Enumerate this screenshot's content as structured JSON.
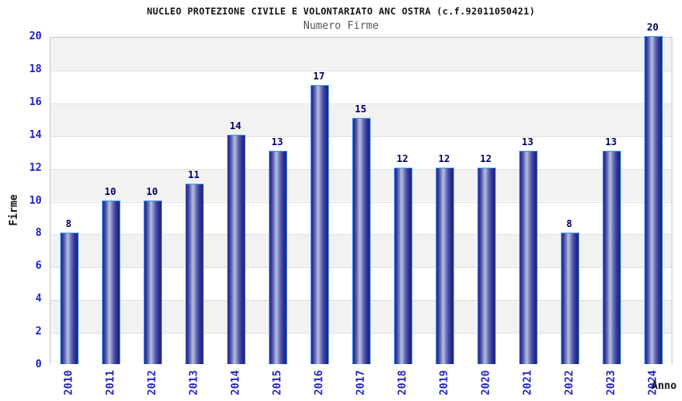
{
  "header": {
    "title": "NUCLEO PROTEZIONE CIVILE E VOLONTARIATO ANC OSTRA (c.f.92011050421)",
    "subtitle": "Numero Firme"
  },
  "chart_data": {
    "type": "bar",
    "title": "NUCLEO PROTEZIONE CIVILE E VOLONTARIATO ANC OSTRA (c.f.92011050421)",
    "subtitle": "Numero Firme",
    "xlabel": "Anno",
    "ylabel": "Firme",
    "categories": [
      "2010",
      "2011",
      "2012",
      "2013",
      "2014",
      "2015",
      "2016",
      "2017",
      "2018",
      "2019",
      "2020",
      "2021",
      "2022",
      "2023",
      "2024"
    ],
    "values": [
      8,
      10,
      10,
      11,
      14,
      13,
      17,
      15,
      12,
      12,
      12,
      13,
      8,
      13,
      20
    ],
    "ylim": [
      0,
      20
    ],
    "yticks": [
      0,
      2,
      4,
      6,
      8,
      10,
      12,
      14,
      16,
      18,
      20
    ],
    "grid": "horizontal",
    "legend": "none",
    "colors": {
      "bar_dark": "#26268e",
      "bar_highlight": "#b8bede",
      "bar_border": "#3d9bea",
      "tick_label": "#2222cc",
      "value_label": "#000066",
      "axis_title": "#111111",
      "band_gray": "#f2f2f2",
      "band_white": "#ffffff",
      "gridline": "#e0e0e0",
      "plot_border": "#c9c9c9",
      "background": "#ffffff"
    }
  }
}
